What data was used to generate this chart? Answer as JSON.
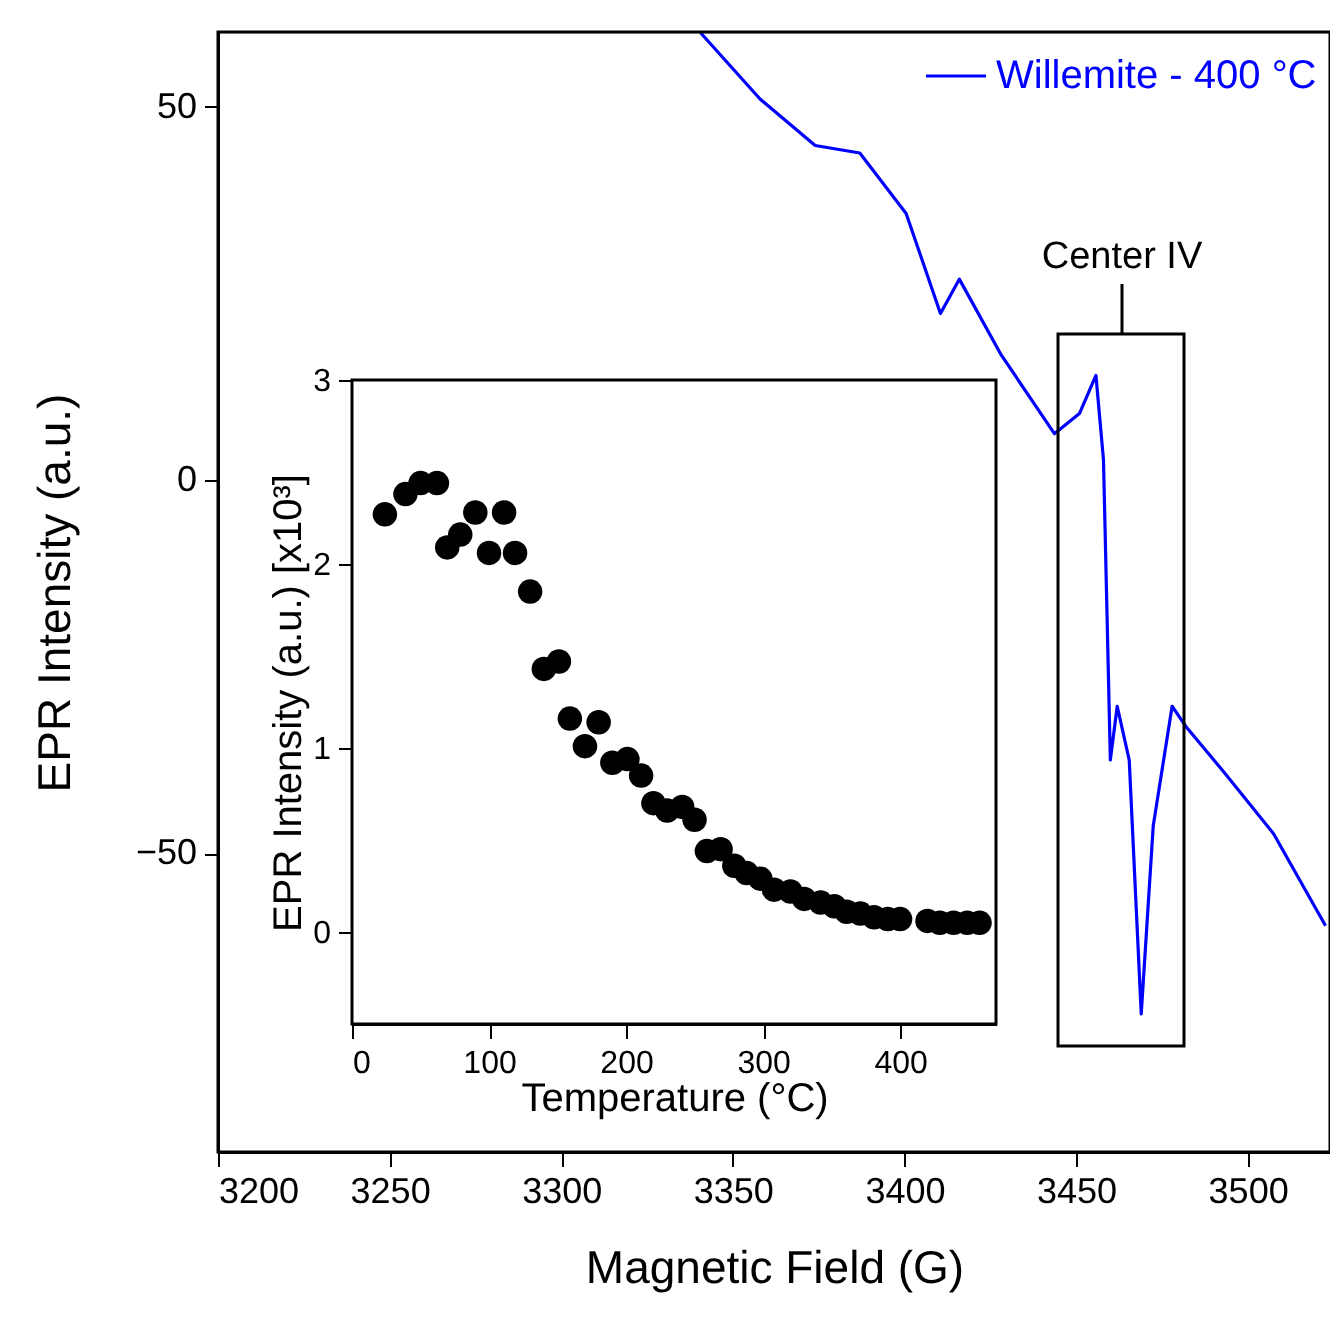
{
  "chart_data": [
    {
      "type": "line",
      "xlabel": "Magnetic Field (G)",
      "ylabel": "EPR Intensity (a.u.)",
      "xlim": [
        3200,
        3524
      ],
      "ylim": [
        -90,
        60
      ],
      "xticks": [
        3200,
        3250,
        3300,
        3350,
        3400,
        3450,
        3500
      ],
      "yticks": [
        -50,
        0,
        50
      ],
      "grid": false,
      "legend": "top right",
      "series": [
        {
          "name": "Willemite - 400 °C",
          "color": "#0000ff",
          "x": [
            3340.6,
            3358,
            3374,
            3387,
            3400.5,
            3410.5,
            3416,
            3428,
            3443.7,
            3451,
            3455.8,
            3458,
            3460,
            3462,
            3465.5,
            3469,
            3472.5,
            3478,
            3482,
            3493.6,
            3507.6,
            3522.7
          ],
          "values": [
            59.9,
            51,
            44.8,
            43.8,
            35.7,
            22.3,
            26.9,
            16.9,
            6.2,
            8.9,
            14,
            2.7,
            -37.5,
            -30.3,
            -37.5,
            -71.5,
            -46.3,
            -30.3,
            -33,
            -39.4,
            -47.4,
            -59.7
          ]
        }
      ],
      "line_style": "solid",
      "annotations": [
        "Center IV"
      ]
    },
    {
      "type": "scatter",
      "xlabel": "Temperature (°C)",
      "ylabel": "EPR Intensity (a.u.) [x10³]",
      "xlim": [
        0,
        470
      ],
      "ylim": [
        -0.5,
        3
      ],
      "xticks": [
        0,
        100,
        200,
        300,
        400
      ],
      "yticks": [
        0,
        1,
        2,
        3
      ],
      "grid": false,
      "marker": "circle",
      "series": [
        {
          "color": "#000000",
          "x": [
            24,
            39,
            50,
            62,
            69.5,
            79,
            90,
            100,
            111,
            119,
            130,
            140,
            151,
            159,
            170,
            180,
            190,
            201,
            211,
            220,
            230,
            241,
            250,
            259,
            269,
            279,
            288,
            298,
            308,
            320,
            330,
            342,
            352,
            361,
            371,
            381,
            391,
            400,
            420,
            429,
            439,
            449,
            458
          ],
          "values": [
            2.27,
            2.38,
            2.44,
            2.44,
            2.09,
            2.16,
            2.28,
            2.06,
            2.28,
            2.06,
            1.85,
            1.43,
            1.47,
            1.16,
            1.01,
            1.14,
            0.92,
            0.94,
            0.85,
            0.7,
            0.66,
            0.68,
            0.61,
            0.44,
            0.45,
            0.36,
            0.32,
            0.29,
            0.23,
            0.22,
            0.18,
            0.16,
            0.14,
            0.11,
            0.1,
            0.08,
            0.07,
            0.07,
            0.06,
            0.05,
            0.05,
            0.05,
            0.05
          ]
        }
      ]
    }
  ]
}
